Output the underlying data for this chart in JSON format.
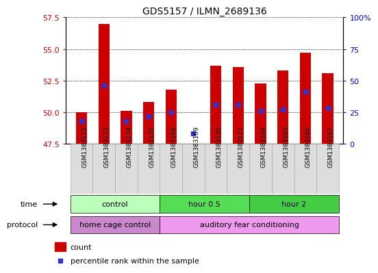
{
  "title": "GDS5157 / ILMN_2689136",
  "samples": [
    "GSM1383172",
    "GSM1383173",
    "GSM1383174",
    "GSM1383175",
    "GSM1383168",
    "GSM1383169",
    "GSM1383170",
    "GSM1383171",
    "GSM1383164",
    "GSM1383165",
    "GSM1383166",
    "GSM1383167"
  ],
  "count_values": [
    50.0,
    57.0,
    50.1,
    50.8,
    51.8,
    47.5,
    53.7,
    53.6,
    52.3,
    53.3,
    54.7,
    53.1
  ],
  "percentile_values": [
    18,
    46,
    18,
    22,
    25,
    8,
    31,
    31,
    26,
    27,
    41,
    28
  ],
  "base_value": 47.5,
  "ylim_left": [
    47.5,
    57.5
  ],
  "ylim_right": [
    0,
    100
  ],
  "yticks_left": [
    47.5,
    50.0,
    52.5,
    55.0,
    57.5
  ],
  "yticks_right": [
    0,
    25,
    50,
    75,
    100
  ],
  "ytick_labels_right": [
    "0",
    "25",
    "50",
    "75",
    "100%"
  ],
  "bar_color": "#cc0000",
  "blue_color": "#3333cc",
  "grid_color": "#000000",
  "time_groups": [
    {
      "label": "control",
      "start": 0,
      "end": 3,
      "color": "#bbffbb"
    },
    {
      "label": "hour 0.5",
      "start": 4,
      "end": 7,
      "color": "#55dd55"
    },
    {
      "label": "hour 2",
      "start": 8,
      "end": 11,
      "color": "#44cc44"
    }
  ],
  "protocol_groups": [
    {
      "label": "home cage control",
      "start": 0,
      "end": 3,
      "color": "#dd88ee"
    },
    {
      "label": "auditory fear conditioning",
      "start": 4,
      "end": 11,
      "color": "#dd88ee"
    }
  ],
  "legend_items": [
    "count",
    "percentile rank within the sample"
  ],
  "xlabel_time": "time",
  "xlabel_protocol": "protocol",
  "bg_color": "#ffffff",
  "tick_label_color_left": "#cc0000",
  "tick_label_color_right": "#0000cc",
  "bar_width": 0.5,
  "tick_color_left": "#cc0000",
  "tick_color_right": "#0000cc"
}
